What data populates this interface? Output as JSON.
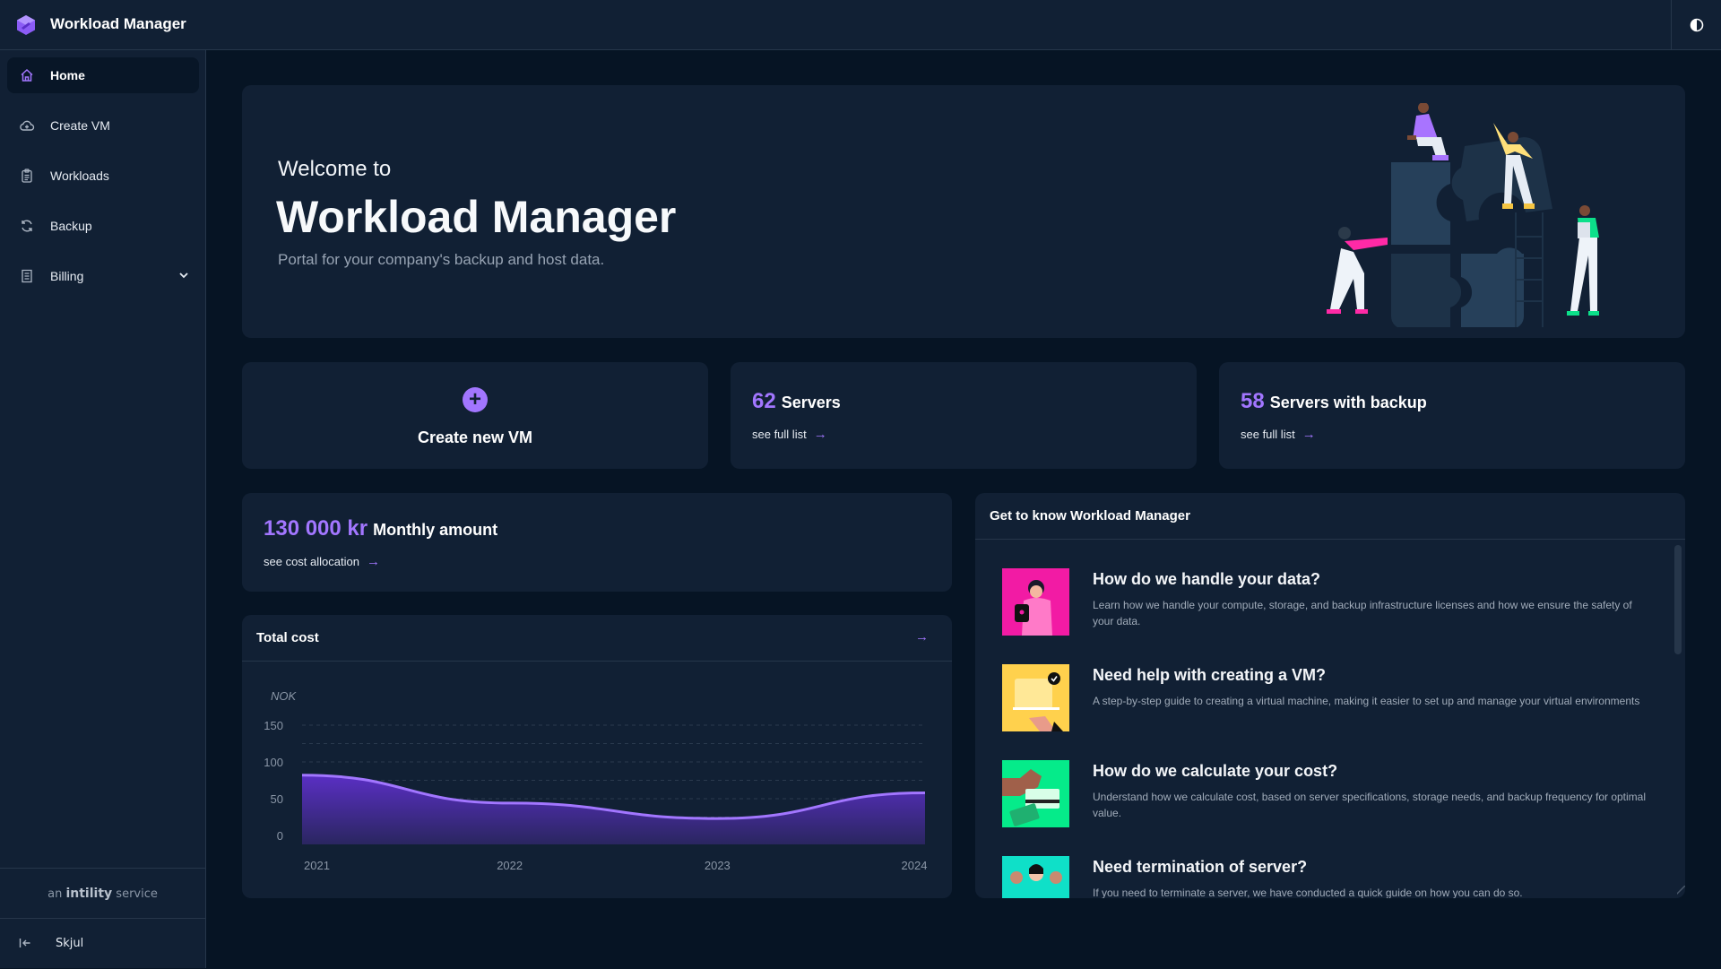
{
  "app": {
    "title": "Workload Manager",
    "theme_toggle_icon": "contrast-icon"
  },
  "sidebar": {
    "items": [
      {
        "label": "Home",
        "icon": "home-icon",
        "active": true
      },
      {
        "label": "Create VM",
        "icon": "cloud-plus-icon"
      },
      {
        "label": "Workloads",
        "icon": "clipboard-icon"
      },
      {
        "label": "Backup",
        "icon": "refresh-icon"
      },
      {
        "label": "Billing",
        "icon": "receipt-icon",
        "expandable": true
      }
    ],
    "service_prefix": "an",
    "service_brand": "intility",
    "service_suffix": "service",
    "collapse_label": "Skjul"
  },
  "hero": {
    "welcome": "Welcome to",
    "title": "Workload Manager",
    "subtitle": "Portal for your company's backup and host data."
  },
  "cards": {
    "create_vm": "Create new VM",
    "servers": {
      "count": "62",
      "label": "Servers",
      "link": "see full list"
    },
    "backup": {
      "count": "58",
      "label": "Servers with backup",
      "link": "see full list"
    },
    "monthly": {
      "amount": "130 000 kr",
      "label": "Monthly amount",
      "link": "see cost allocation"
    }
  },
  "total_cost": {
    "title": "Total cost"
  },
  "chart_data": {
    "type": "area",
    "title": "Total cost",
    "ylabel": "NOK",
    "xlabel": "",
    "x": [
      2021,
      2022,
      2023,
      2024
    ],
    "x_ticks": [
      "2021",
      "2022",
      "2023",
      "2024"
    ],
    "y_ticks": [
      "0",
      "50",
      "100",
      "150"
    ],
    "values": [
      82,
      44,
      23,
      58
    ],
    "ylim": [
      0,
      150
    ],
    "grid": true,
    "colors": {
      "line": "#a276ff",
      "fill_top": "#5a2fc4",
      "fill_bottom": "#2a2660"
    }
  },
  "get_to_know": {
    "title": "Get to know Workload Manager",
    "items": [
      {
        "title": "How do we handle your data?",
        "desc": "Learn how we handle your compute, storage, and backup infrastructure licenses and how we ensure the safety of your data.",
        "color": "#f21ba4"
      },
      {
        "title": "Need help with creating a VM?",
        "desc": "A step-by-step guide to creating a virtual machine, making it easier to set up and manage your virtual environments",
        "color": "#ffd14d"
      },
      {
        "title": "How do we calculate your cost?",
        "desc": "Understand how we calculate cost, based on server specifications, storage needs, and backup frequency for optimal value.",
        "color": "#05eb8a"
      },
      {
        "title": "Need termination of server?",
        "desc": "If you need to terminate a server, we have conducted a quick guide on how you can do so.",
        "color": "#0fe0c8"
      }
    ]
  }
}
